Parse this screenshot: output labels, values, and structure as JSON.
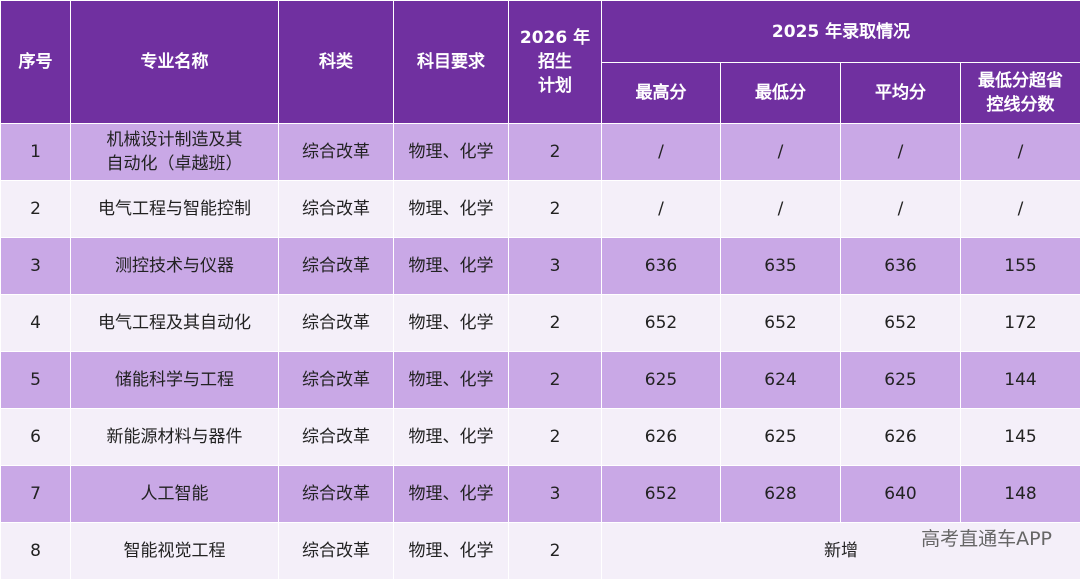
{
  "table": {
    "header": {
      "columns": [
        "序号",
        "专业名称",
        "科类",
        "科目要求",
        [
          "2026 年",
          "招生",
          "计划"
        ]
      ],
      "group": "2025 年录取情况",
      "sub": [
        "最高分",
        "最低分",
        "平均分",
        [
          "最低分超省",
          "控线分数"
        ]
      ]
    },
    "rows": [
      [
        1,
        [
          "机械设计制造及其",
          "自动化（卓越班）"
        ],
        "综合改革",
        "物理、化学",
        2,
        "/",
        "/",
        "/",
        "/"
      ],
      [
        2,
        "电气工程与智能控制",
        "综合改革",
        "物理、化学",
        2,
        "/",
        "/",
        "/",
        "/"
      ],
      [
        3,
        "测控技术与仪器",
        "综合改革",
        "物理、化学",
        3,
        636,
        635,
        636,
        155
      ],
      [
        4,
        "电气工程及其自动化",
        "综合改革",
        "物理、化学",
        2,
        652,
        652,
        652,
        172
      ],
      [
        5,
        "储能科学与工程",
        "综合改革",
        "物理、化学",
        2,
        625,
        624,
        625,
        144
      ],
      [
        6,
        "新能源材料与器件",
        "综合改革",
        "物理、化学",
        2,
        626,
        625,
        626,
        145
      ],
      [
        7,
        "人工智能",
        "综合改革",
        "物理、化学",
        3,
        652,
        628,
        640,
        148
      ],
      [
        8,
        "智能视觉工程",
        "综合改革",
        "物理、化学",
        2,
        "新增"
      ]
    ]
  },
  "watermark": "高考直通车APP"
}
